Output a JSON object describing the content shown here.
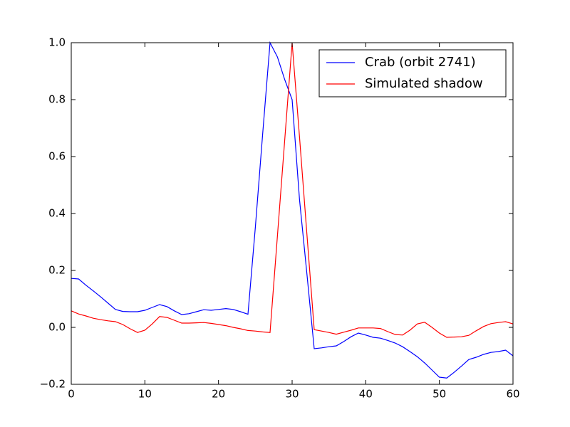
{
  "chart_data": {
    "type": "line",
    "x": [
      0,
      1,
      2,
      3,
      4,
      5,
      6,
      7,
      8,
      9,
      10,
      11,
      12,
      13,
      14,
      15,
      16,
      17,
      18,
      19,
      20,
      21,
      22,
      23,
      24,
      25,
      26,
      27,
      28,
      29,
      30,
      31,
      32,
      33,
      34,
      35,
      36,
      37,
      38,
      39,
      40,
      41,
      42,
      43,
      44,
      45,
      46,
      47,
      48,
      49,
      50,
      51,
      52,
      53,
      54,
      55,
      56,
      57,
      58,
      59,
      60
    ],
    "series": [
      {
        "name": "Crab (orbit 2741)",
        "color": "#0000ff",
        "values": [
          0.172,
          0.17,
          0.148,
          0.128,
          0.107,
          0.085,
          0.063,
          0.056,
          0.055,
          0.055,
          0.06,
          0.07,
          0.08,
          0.073,
          0.058,
          0.045,
          0.048,
          0.055,
          0.062,
          0.06,
          0.063,
          0.066,
          0.063,
          0.055,
          0.046,
          0.35,
          0.68,
          1.0,
          0.95,
          0.87,
          0.8,
          0.45,
          0.19,
          -0.075,
          -0.072,
          -0.068,
          -0.065,
          -0.05,
          -0.033,
          -0.02,
          -0.027,
          -0.035,
          -0.038,
          -0.046,
          -0.055,
          -0.068,
          -0.085,
          -0.103,
          -0.125,
          -0.15,
          -0.175,
          -0.178,
          -0.158,
          -0.136,
          -0.113,
          -0.105,
          -0.095,
          -0.088,
          -0.085,
          -0.08,
          -0.1
        ]
      },
      {
        "name": "Simulated shadow",
        "color": "#ff0000",
        "values": [
          0.058,
          0.047,
          0.04,
          0.032,
          0.027,
          0.023,
          0.02,
          0.01,
          -0.005,
          -0.018,
          -0.01,
          0.012,
          0.038,
          0.035,
          0.025,
          0.015,
          0.015,
          0.016,
          0.017,
          0.014,
          0.01,
          0.006,
          0.0,
          -0.005,
          -0.011,
          -0.013,
          -0.016,
          -0.018,
          0.32,
          0.66,
          1.0,
          0.67,
          0.33,
          -0.008,
          -0.013,
          -0.018,
          -0.024,
          -0.017,
          -0.01,
          -0.002,
          -0.002,
          -0.002,
          -0.004,
          -0.015,
          -0.025,
          -0.027,
          -0.01,
          0.012,
          0.018,
          0.0,
          -0.02,
          -0.035,
          -0.034,
          -0.033,
          -0.028,
          -0.012,
          0.003,
          0.013,
          0.017,
          0.02,
          0.012
        ]
      }
    ],
    "xlim": [
      0,
      60
    ],
    "xticks": [
      0,
      10,
      20,
      30,
      40,
      50,
      60
    ],
    "ylim": [
      -0.2,
      1.0
    ],
    "yticks": [
      {
        "value": -0.2,
        "label": "−0.2"
      },
      {
        "value": 0,
        "label": "0.0"
      },
      0.2,
      0.4,
      0.6,
      0.8,
      {
        "value": 1,
        "label": "1.0"
      }
    ],
    "grid": false,
    "legend": "upper right"
  }
}
